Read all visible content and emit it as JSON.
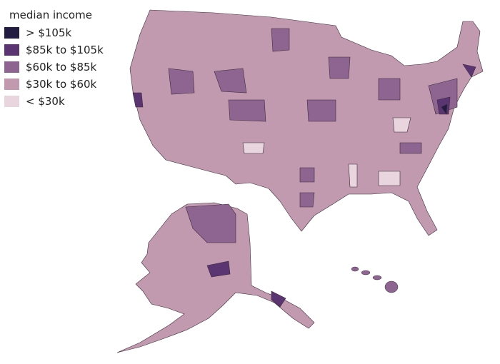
{
  "legend": {
    "title": "median income",
    "items": [
      {
        "label": "> $105k",
        "color": "#221c40"
      },
      {
        "label": "$85k to $105k",
        "color": "#5b3571"
      },
      {
        "label": "$60k to $85k",
        "color": "#8d6590"
      },
      {
        "label": "$30k to $60k",
        "color": "#c29aaf"
      },
      {
        "label": "< $30k",
        "color": "#e9d5dd"
      }
    ]
  },
  "colors": {
    "border": "#3a2a3a",
    "base": "#c29aaf"
  }
}
